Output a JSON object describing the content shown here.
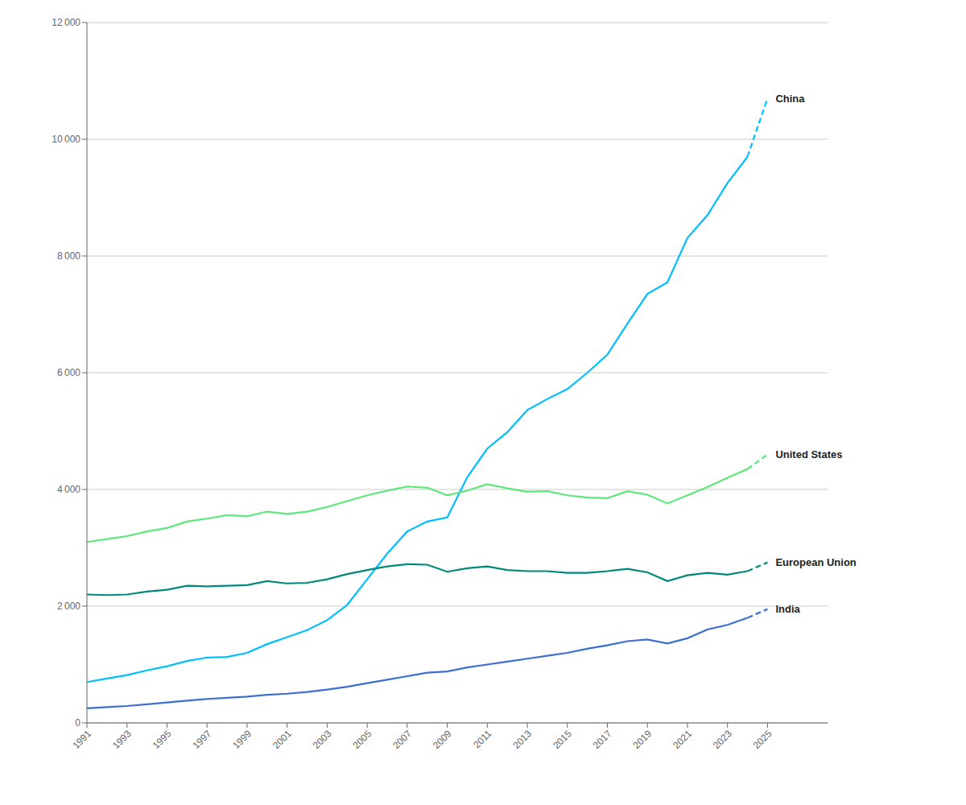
{
  "chart_data": {
    "type": "line",
    "x": [
      1991,
      1992,
      1993,
      1994,
      1995,
      1996,
      1997,
      1998,
      1999,
      2000,
      2001,
      2002,
      2003,
      2004,
      2005,
      2006,
      2007,
      2008,
      2009,
      2010,
      2011,
      2012,
      2013,
      2014,
      2015,
      2016,
      2017,
      2018,
      2019,
      2020,
      2021,
      2022,
      2023,
      2024,
      2025
    ],
    "series": [
      {
        "name": "China",
        "color": "#00BFFF",
        "line_style": "solid",
        "values": [
          700,
          760,
          820,
          900,
          970,
          1060,
          1120,
          1130,
          1200,
          1350,
          1470,
          1590,
          1760,
          2020,
          2460,
          2900,
          3280,
          3450,
          3520,
          4210,
          4700,
          4980,
          5360,
          5550,
          5720,
          6000,
          6310,
          6840,
          7350,
          7550,
          8310,
          8700,
          9250,
          9700,
          null
        ]
      },
      {
        "name": "China",
        "color": "#00BFFF",
        "line_style": "dashed",
        "values": [
          null,
          null,
          null,
          null,
          null,
          null,
          null,
          null,
          null,
          null,
          null,
          null,
          null,
          null,
          null,
          null,
          null,
          null,
          null,
          null,
          null,
          null,
          null,
          null,
          null,
          null,
          null,
          null,
          null,
          null,
          null,
          null,
          null,
          9700,
          10700
        ]
      },
      {
        "name": "United States",
        "color": "#5DE87A",
        "line_style": "solid",
        "values": [
          3100,
          3150,
          3200,
          3280,
          3340,
          3450,
          3500,
          3560,
          3540,
          3620,
          3580,
          3620,
          3700,
          3800,
          3900,
          3980,
          4050,
          4030,
          3900,
          3980,
          4090,
          4020,
          3960,
          3970,
          3900,
          3860,
          3850,
          3970,
          3910,
          3760,
          3900,
          4040,
          4200,
          4350,
          null
        ]
      },
      {
        "name": "United States",
        "color": "#5DE87A",
        "line_style": "dashed",
        "values": [
          null,
          null,
          null,
          null,
          null,
          null,
          null,
          null,
          null,
          null,
          null,
          null,
          null,
          null,
          null,
          null,
          null,
          null,
          null,
          null,
          null,
          null,
          null,
          null,
          null,
          null,
          null,
          null,
          null,
          null,
          null,
          null,
          null,
          4350,
          4600
        ]
      },
      {
        "name": "European Union",
        "color": "#00897B",
        "line_style": "solid",
        "values": [
          2200,
          2190,
          2200,
          2250,
          2280,
          2350,
          2340,
          2350,
          2360,
          2430,
          2390,
          2400,
          2460,
          2550,
          2620,
          2680,
          2720,
          2710,
          2590,
          2650,
          2680,
          2620,
          2600,
          2600,
          2570,
          2570,
          2600,
          2640,
          2580,
          2430,
          2530,
          2570,
          2540,
          2600,
          null
        ]
      },
      {
        "name": "European Union",
        "color": "#00897B",
        "line_style": "dashed",
        "values": [
          null,
          null,
          null,
          null,
          null,
          null,
          null,
          null,
          null,
          null,
          null,
          null,
          null,
          null,
          null,
          null,
          null,
          null,
          null,
          null,
          null,
          null,
          null,
          null,
          null,
          null,
          null,
          null,
          null,
          null,
          null,
          null,
          null,
          2600,
          2750
        ]
      },
      {
        "name": "India",
        "color": "#3B6FD4",
        "line_style": "solid",
        "values": [
          250,
          270,
          290,
          320,
          350,
          380,
          410,
          430,
          450,
          480,
          500,
          530,
          570,
          620,
          680,
          740,
          800,
          860,
          880,
          950,
          1000,
          1050,
          1100,
          1150,
          1200,
          1270,
          1330,
          1400,
          1430,
          1360,
          1450,
          1600,
          1680,
          1800,
          null
        ]
      },
      {
        "name": "India",
        "color": "#3B6FD4",
        "line_style": "dashed",
        "values": [
          null,
          null,
          null,
          null,
          null,
          null,
          null,
          null,
          null,
          null,
          null,
          null,
          null,
          null,
          null,
          null,
          null,
          null,
          null,
          null,
          null,
          null,
          null,
          null,
          null,
          null,
          null,
          null,
          null,
          null,
          null,
          null,
          null,
          1800,
          1950
        ]
      }
    ],
    "xlim": [
      1991,
      2028
    ],
    "xticks": [
      1991,
      1993,
      1995,
      1997,
      1999,
      2001,
      2003,
      2005,
      2007,
      2009,
      2011,
      2013,
      2015,
      2017,
      2019,
      2021,
      2023,
      2025
    ],
    "ylim": [
      0,
      12000
    ],
    "yticks": [
      0,
      {
        "value": 2000,
        "label": "2 000"
      },
      {
        "value": 4000,
        "label": "4 000"
      },
      {
        "value": 6000,
        "label": "6 000"
      },
      {
        "value": 8000,
        "label": "8 000"
      },
      {
        "value": 10000,
        "label": "10 000"
      },
      {
        "value": 12000,
        "label": "12 000"
      }
    ],
    "grid": true
  }
}
